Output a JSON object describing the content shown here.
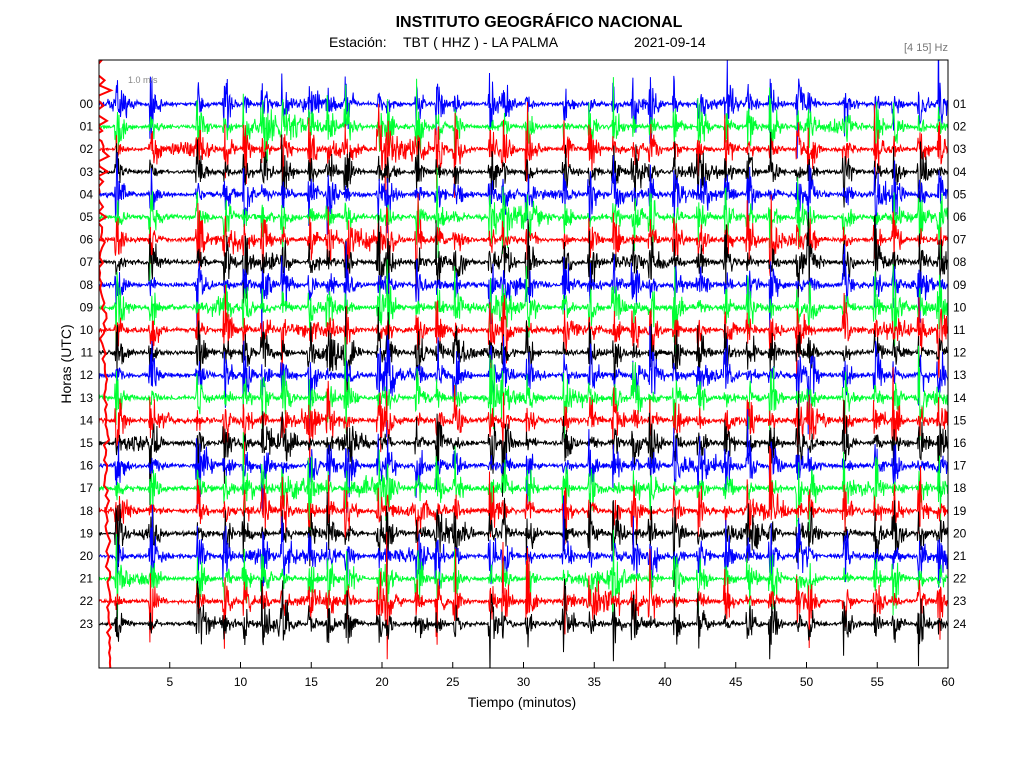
{
  "chart_data": {
    "type": "line",
    "title": "INSTITUTO GEOGRÁFICO NACIONAL",
    "station_label": "Estación:",
    "station": "TBT ( HHZ ) - LA PALMA",
    "date": "2021-09-14",
    "filter": "[4 15] Hz",
    "scale_note": "1.0 m/s",
    "xlabel": "Tiempo (minutos)",
    "ylabel": "Horas (UTC)",
    "xlim": [
      0,
      60
    ],
    "x_ticks": [
      "5",
      "10",
      "15",
      "20",
      "25",
      "30",
      "35",
      "40",
      "45",
      "50",
      "55",
      "60"
    ],
    "left_hour_labels": [
      "00",
      "01",
      "02",
      "03",
      "04",
      "05",
      "06",
      "07",
      "08",
      "09",
      "10",
      "11",
      "12",
      "13",
      "14",
      "15",
      "16",
      "17",
      "18",
      "19",
      "20",
      "21",
      "22",
      "23"
    ],
    "right_hour_labels": [
      "01",
      "02",
      "03",
      "04",
      "05",
      "06",
      "07",
      "08",
      "09",
      "10",
      "11",
      "12",
      "13",
      "14",
      "15",
      "16",
      "17",
      "18",
      "19",
      "20",
      "21",
      "22",
      "23",
      "24"
    ],
    "trace_colors": [
      "#0000ff",
      "#00ff33",
      "#ff0000",
      "#000000"
    ],
    "event_minutes": [
      1.2,
      3.6,
      6.9,
      8.8,
      10.2,
      11.5,
      12.9,
      14.8,
      16.1,
      17.4,
      19.7,
      20.3,
      22.4,
      23.8,
      25.1,
      27.6,
      28.5,
      30.2,
      32.8,
      34.6,
      36.3,
      37.7,
      38.9,
      40.6,
      42.3,
      44.2,
      45.8,
      47.4,
      49.3,
      50.1,
      52.6,
      54.8,
      56.1,
      57.9,
      59.3
    ]
  }
}
